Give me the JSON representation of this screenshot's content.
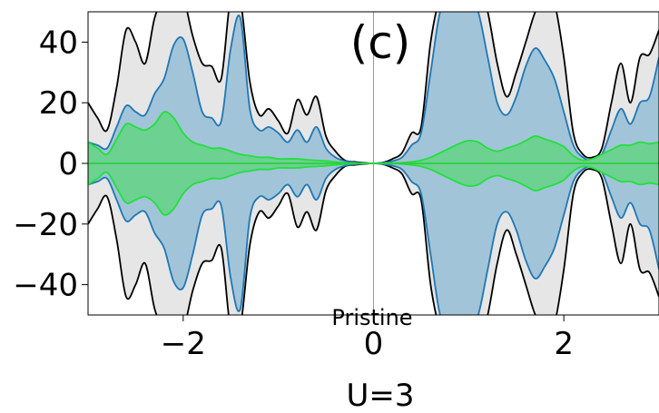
{
  "chart_data": {
    "type": "area",
    "panel_label": "(c)",
    "annotation": "Pristine",
    "xlabel": "U=3",
    "ylabel": "",
    "xlim": [
      -3.0,
      3.0
    ],
    "ylim": [
      -50,
      50
    ],
    "xticks": [
      -2,
      0,
      2
    ],
    "yticks": [
      -40,
      -20,
      0,
      20,
      40
    ],
    "xtick_labels": [
      "−2",
      "0",
      "2"
    ],
    "ytick_labels": [
      "−40",
      "−20",
      "0",
      "20",
      "40"
    ],
    "grid": false,
    "symmetric_about_zero": true,
    "colors": {
      "outer_fill": "#e6e6e6",
      "outer_line": "#000000",
      "middle_fill": "#a2c4d9",
      "middle_line": "#1f77b4",
      "inner_fill": "#6dd191",
      "inner_line": "#22e03c",
      "zero_line": "#2ecc40",
      "vline": "#999999"
    },
    "x": [
      -3.0,
      -2.9,
      -2.8,
      -2.7,
      -2.6,
      -2.5,
      -2.4,
      -2.3,
      -2.2,
      -2.1,
      -2.0,
      -1.9,
      -1.8,
      -1.7,
      -1.6,
      -1.5,
      -1.4,
      -1.3,
      -1.2,
      -1.1,
      -1.0,
      -0.9,
      -0.8,
      -0.7,
      -0.6,
      -0.5,
      -0.4,
      -0.3,
      -0.2,
      -0.1,
      0.0,
      0.1,
      0.2,
      0.3,
      0.4,
      0.5,
      0.6,
      0.7,
      0.8,
      0.9,
      1.0,
      1.1,
      1.2,
      1.3,
      1.4,
      1.5,
      1.6,
      1.7,
      1.8,
      1.9,
      2.0,
      2.1,
      2.2,
      2.3,
      2.4,
      2.5,
      2.6,
      2.7,
      2.8,
      2.9,
      3.0
    ],
    "series": [
      {
        "values": [
          20,
          15,
          11,
          25,
          44,
          40,
          33,
          48,
          55,
          57,
          55,
          42,
          33,
          32,
          28,
          55,
          54,
          27,
          16,
          18,
          14,
          10,
          21,
          16,
          22,
          9,
          4,
          1,
          0.5,
          0.2,
          0,
          0.3,
          1.5,
          3.5,
          10,
          12,
          40,
          55,
          60,
          62,
          62,
          60,
          50,
          33,
          22,
          30,
          40,
          50,
          55,
          53,
          35,
          10,
          3,
          2,
          5,
          20,
          33,
          20,
          35,
          36,
          44
        ]
      },
      {
        "values": [
          7,
          6,
          5,
          12,
          19,
          17,
          16,
          23,
          28,
          39,
          41,
          30,
          17,
          15,
          14,
          38,
          48,
          18,
          11,
          12,
          10,
          7,
          11,
          7,
          12,
          5,
          2,
          0.8,
          0.3,
          0.1,
          0,
          0.2,
          0.8,
          2,
          6,
          10,
          30,
          50,
          54,
          56,
          55,
          50,
          35,
          20,
          16,
          22,
          32,
          38,
          34,
          28,
          17,
          6,
          2,
          1,
          3,
          11,
          18,
          13,
          20,
          22,
          35
        ]
      },
      {
        "values": [
          7,
          5,
          3,
          8,
          13,
          12,
          11,
          13,
          17,
          15,
          10,
          7,
          6,
          5,
          5,
          4,
          3,
          2.5,
          2,
          2,
          1.5,
          1.5,
          1.5,
          1.2,
          1,
          0.8,
          0.5,
          0.2,
          0.1,
          0.05,
          0,
          0.05,
          0.1,
          0.2,
          0.5,
          1,
          2,
          3.5,
          5,
          6.5,
          7.5,
          7,
          5,
          4,
          5,
          6,
          7.5,
          9,
          8,
          7,
          5.5,
          2.5,
          1,
          1.5,
          3,
          4.5,
          6,
          6,
          7,
          6.5,
          7
        ]
      }
    ]
  }
}
